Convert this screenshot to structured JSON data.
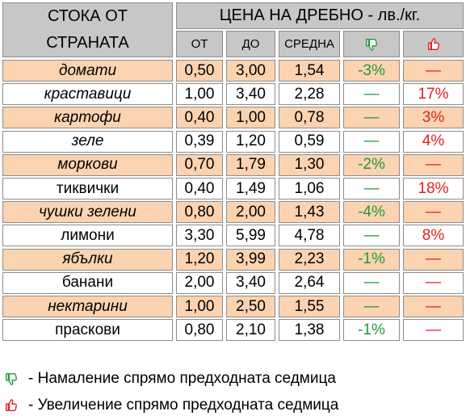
{
  "header": {
    "col_product_line1": "СТОКА ОТ",
    "col_product_line2": "СТРАНАТА",
    "price_title": "ЦЕНА НА ДРЕБНО - лв./кг.",
    "col_from": "ОТ",
    "col_to": "ДО",
    "col_avg": "СРЕДНА",
    "col_down_icon": "thumb-down-green-icon",
    "col_up_icon": "thumb-up-red-icon"
  },
  "rows": [
    {
      "name": "домати",
      "from": "0,50",
      "to": "3,00",
      "avg": "1,54",
      "down": "-3%",
      "up": "—",
      "italic": true,
      "shade": "peach"
    },
    {
      "name": "краставици",
      "from": "1,00",
      "to": "3,40",
      "avg": "2,28",
      "down": "—",
      "up": "17%",
      "italic": true,
      "shade": "white"
    },
    {
      "name": "картофи",
      "from": "0,40",
      "to": "1,00",
      "avg": "0,78",
      "down": "—",
      "up": "3%",
      "italic": true,
      "shade": "peach"
    },
    {
      "name": "зеле",
      "from": "0,39",
      "to": "1,20",
      "avg": "0,59",
      "down": "—",
      "up": "4%",
      "italic": true,
      "shade": "white"
    },
    {
      "name": "моркови",
      "from": "0,70",
      "to": "1,79",
      "avg": "1,30",
      "down": "-2%",
      "up": "—",
      "italic": true,
      "shade": "peach"
    },
    {
      "name": "тиквички",
      "from": "0,40",
      "to": "1,49",
      "avg": "1,06",
      "down": "—",
      "up": "18%",
      "italic": false,
      "shade": "white"
    },
    {
      "name": "чушки зелени",
      "from": "0,80",
      "to": "2,00",
      "avg": "1,43",
      "down": "-4%",
      "up": "—",
      "italic": true,
      "shade": "peach"
    },
    {
      "name": "лимони",
      "from": "3,30",
      "to": "5,99",
      "avg": "4,78",
      "down": "—",
      "up": "8%",
      "italic": false,
      "shade": "white"
    },
    {
      "name": "ябълки",
      "from": "1,20",
      "to": "3,99",
      "avg": "2,23",
      "down": "-1%",
      "up": "—",
      "italic": true,
      "shade": "peach"
    },
    {
      "name": "банани",
      "from": "2,00",
      "to": "3,40",
      "avg": "2,64",
      "down": "—",
      "up": "—",
      "italic": false,
      "shade": "white"
    },
    {
      "name": "нектарини",
      "from": "1,00",
      "to": "2,50",
      "avg": "1,55",
      "down": "—",
      "up": "—",
      "italic": true,
      "shade": "peach"
    },
    {
      "name": "праскови",
      "from": "0,80",
      "to": "2,10",
      "avg": "1,38",
      "down": "-1%",
      "up": "—",
      "italic": false,
      "shade": "white"
    }
  ],
  "colors": {
    "header_bg": "#c7c7c7",
    "peach_row": "#fbd3b1",
    "down_text": "#1f9a3a",
    "up_text": "#e02020"
  },
  "legend": {
    "down_icon": "thumb-down-green-icon",
    "down_text": "- Намаление спрямо предходната седмица",
    "up_icon": "thumb-up-red-icon",
    "up_text": "- Увеличение спрямо предходната седмица"
  }
}
